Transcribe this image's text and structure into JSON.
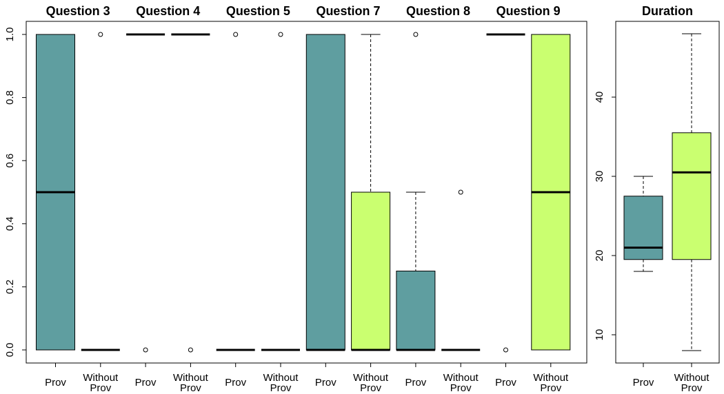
{
  "chart_data": [
    {
      "type": "boxplot",
      "panel": "questions",
      "ylim": [
        0,
        1
      ],
      "yticks": [
        "0.0",
        "0.2",
        "0.4",
        "0.6",
        "0.8",
        "1.0"
      ],
      "groups": [
        {
          "title": "Question 3",
          "boxes": [
            {
              "label": "Prov",
              "fill": "#5f9ea0",
              "min": 0,
              "q1": 0,
              "median": 0.5,
              "q3": 1,
              "max": 1,
              "outliers": []
            },
            {
              "label": "Without\nProv",
              "fill": "#caff70",
              "min": 0,
              "q1": 0,
              "median": 0,
              "q3": 0,
              "max": 0,
              "outliers": [
                1
              ]
            }
          ]
        },
        {
          "title": "Question 4",
          "boxes": [
            {
              "label": "Prov",
              "fill": "#5f9ea0",
              "min": 1,
              "q1": 1,
              "median": 1,
              "q3": 1,
              "max": 1,
              "outliers": [
                0
              ]
            },
            {
              "label": "Without\nProv",
              "fill": "#caff70",
              "min": 1,
              "q1": 1,
              "median": 1,
              "q3": 1,
              "max": 1,
              "outliers": [
                0
              ]
            }
          ]
        },
        {
          "title": "Question 5",
          "boxes": [
            {
              "label": "Prov",
              "fill": "#5f9ea0",
              "min": 0,
              "q1": 0,
              "median": 0,
              "q3": 0,
              "max": 0,
              "outliers": [
                1
              ]
            },
            {
              "label": "Without\nProv",
              "fill": "#caff70",
              "min": 0,
              "q1": 0,
              "median": 0,
              "q3": 0,
              "max": 0,
              "outliers": [
                1
              ]
            }
          ]
        },
        {
          "title": "Question 7",
          "boxes": [
            {
              "label": "Prov",
              "fill": "#5f9ea0",
              "min": 0,
              "q1": 0,
              "median": 0,
              "q3": 1,
              "max": 1,
              "outliers": []
            },
            {
              "label": "Without\nProv",
              "fill": "#caff70",
              "min": 0,
              "q1": 0,
              "median": 0,
              "q3": 0.5,
              "max": 1,
              "outliers": []
            }
          ]
        },
        {
          "title": "Question 8",
          "boxes": [
            {
              "label": "Prov",
              "fill": "#5f9ea0",
              "min": 0,
              "q1": 0,
              "median": 0,
              "q3": 0.25,
              "max": 0.5,
              "outliers": [
                1
              ]
            },
            {
              "label": "Without\nProv",
              "fill": "#caff70",
              "min": 0,
              "q1": 0,
              "median": 0,
              "q3": 0,
              "max": 0,
              "outliers": [
                0.5
              ]
            }
          ]
        },
        {
          "title": "Question 9",
          "boxes": [
            {
              "label": "Prov",
              "fill": "#5f9ea0",
              "min": 1,
              "q1": 1,
              "median": 1,
              "q3": 1,
              "max": 1,
              "outliers": [
                0
              ]
            },
            {
              "label": "Without\nProv",
              "fill": "#caff70",
              "min": 0,
              "q1": 0,
              "median": 0.5,
              "q3": 1,
              "max": 1,
              "outliers": []
            }
          ]
        }
      ]
    },
    {
      "type": "boxplot",
      "panel": "duration",
      "title": "Duration",
      "ylim": [
        6.5,
        50.5
      ],
      "yticks": [
        "10",
        "20",
        "30",
        "40"
      ],
      "boxes": [
        {
          "label": "Prov",
          "fill": "#5f9ea0",
          "min": 18,
          "q1": 19.5,
          "median": 21,
          "q3": 27.5,
          "max": 30,
          "outliers": []
        },
        {
          "label": "Without\nProv",
          "fill": "#caff70",
          "min": 8,
          "q1": 19.5,
          "median": 30.5,
          "q3": 35.5,
          "max": 48,
          "outliers": []
        }
      ]
    }
  ]
}
